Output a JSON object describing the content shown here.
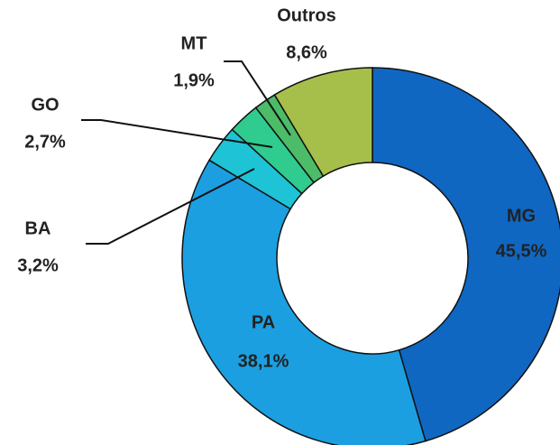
{
  "chart_data": {
    "type": "donut",
    "categories": [
      "MG",
      "PA",
      "BA",
      "GO",
      "MT",
      "Outros"
    ],
    "values": [
      45.5,
      38.1,
      3.2,
      2.7,
      1.9,
      8.6
    ],
    "value_labels": [
      "45,5%",
      "38,1%",
      "3,2%",
      "2,7%",
      "1,9%",
      "8,6%"
    ],
    "colors": [
      "#0f67c2",
      "#1c9fe0",
      "#1ec3d6",
      "#2fcb8f",
      "#4cbc69",
      "#a6bf4b"
    ]
  }
}
